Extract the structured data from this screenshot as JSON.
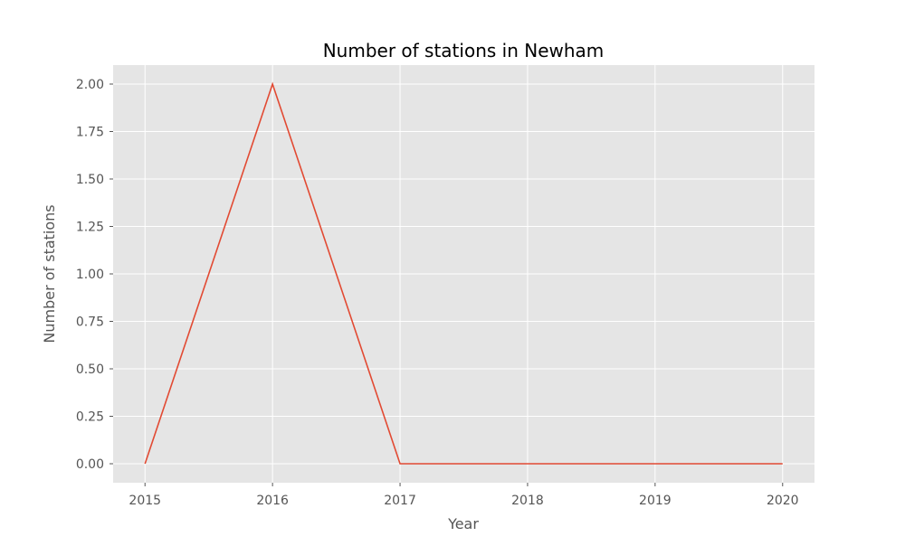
{
  "chart_data": {
    "type": "line",
    "title": "Number of stations in Newham",
    "xlabel": "Year",
    "ylabel": "Number of stations",
    "x": [
      2015,
      2016,
      2017,
      2018,
      2019,
      2020
    ],
    "series": [
      {
        "values": [
          0,
          2,
          0,
          0,
          0,
          0
        ]
      }
    ],
    "xlim": [
      2014.75,
      2020.25
    ],
    "ylim": [
      -0.1,
      2.1
    ],
    "xticks": [
      2015,
      2016,
      2017,
      2018,
      2019,
      2020
    ],
    "xtick_labels": [
      "2015",
      "2016",
      "2017",
      "2018",
      "2019",
      "2020"
    ],
    "yticks": [
      0,
      0.25,
      0.5,
      0.75,
      1.0,
      1.25,
      1.5,
      1.75,
      2.0
    ],
    "ytick_labels": [
      "0.00",
      "0.25",
      "0.50",
      "0.75",
      "1.00",
      "1.25",
      "1.50",
      "1.75",
      "2.00"
    ],
    "grid": true,
    "legend": "none",
    "colors": {
      "background": "#ffffff",
      "plot_background": "#e5e5e5",
      "grid": "#ffffff",
      "line": "#e24a33",
      "tick_label": "#555555",
      "axis_label": "#555555",
      "title": "#000000"
    }
  }
}
